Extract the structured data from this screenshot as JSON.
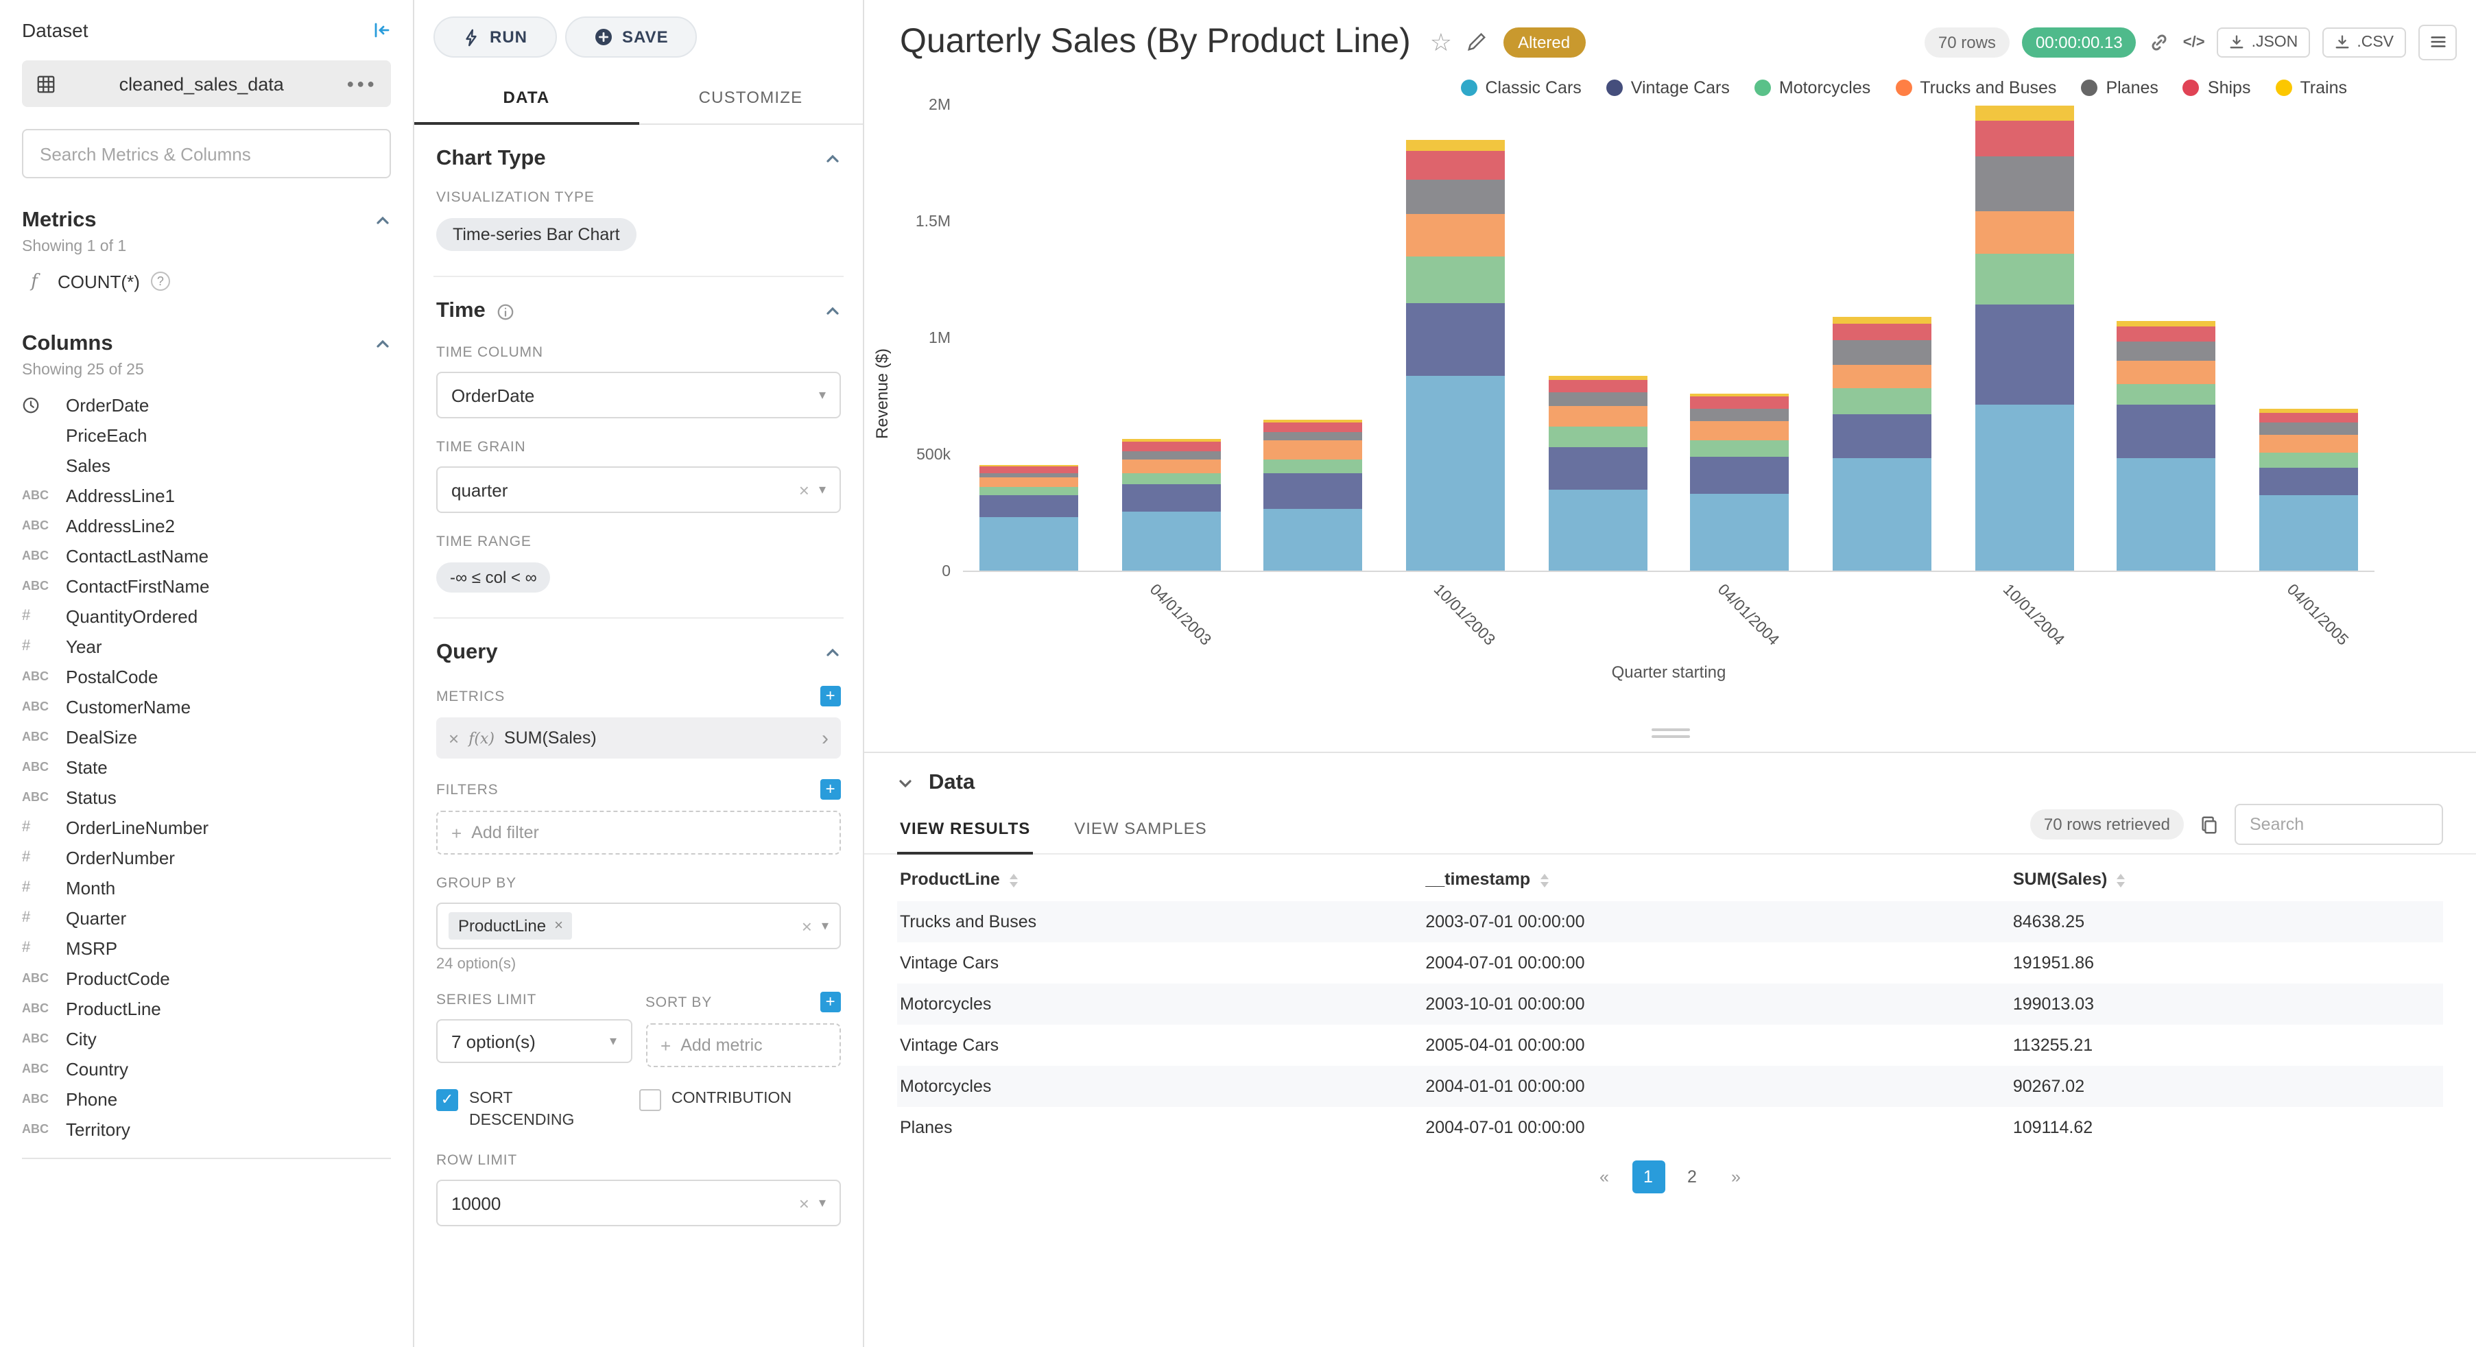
{
  "colors": {
    "accent": "#299CDB",
    "timer_badge_bg": "#4FBA8B",
    "altered_badge_bg": "#C9992E"
  },
  "dataset_panel": {
    "title": "Dataset",
    "dataset_name": "cleaned_sales_data",
    "search_placeholder": "Search Metrics & Columns",
    "metrics": {
      "title": "Metrics",
      "showing": "Showing 1 of 1",
      "items": [
        {
          "label": "COUNT(*)",
          "icon": "function"
        }
      ]
    },
    "columns": {
      "title": "Columns",
      "showing": "Showing 25 of 25",
      "items": [
        {
          "name": "OrderDate",
          "type": "time"
        },
        {
          "name": "PriceEach",
          "type": "none"
        },
        {
          "name": "Sales",
          "type": "none"
        },
        {
          "name": "AddressLine1",
          "type": "text"
        },
        {
          "name": "AddressLine2",
          "type": "text"
        },
        {
          "name": "ContactLastName",
          "type": "text"
        },
        {
          "name": "ContactFirstName",
          "type": "text"
        },
        {
          "name": "QuantityOrdered",
          "type": "num"
        },
        {
          "name": "Year",
          "type": "num"
        },
        {
          "name": "PostalCode",
          "type": "text"
        },
        {
          "name": "CustomerName",
          "type": "text"
        },
        {
          "name": "DealSize",
          "type": "text"
        },
        {
          "name": "State",
          "type": "text"
        },
        {
          "name": "Status",
          "type": "text"
        },
        {
          "name": "OrderLineNumber",
          "type": "num"
        },
        {
          "name": "OrderNumber",
          "type": "num"
        },
        {
          "name": "Month",
          "type": "num"
        },
        {
          "name": "Quarter",
          "type": "num"
        },
        {
          "name": "MSRP",
          "type": "num"
        },
        {
          "name": "ProductCode",
          "type": "text"
        },
        {
          "name": "ProductLine",
          "type": "text"
        },
        {
          "name": "City",
          "type": "text"
        },
        {
          "name": "Country",
          "type": "text"
        },
        {
          "name": "Phone",
          "type": "text"
        },
        {
          "name": "Territory",
          "type": "text"
        }
      ]
    }
  },
  "control_panel": {
    "run_label": "RUN",
    "save_label": "SAVE",
    "tabs": [
      "DATA",
      "CUSTOMIZE"
    ],
    "chart_type": {
      "title": "Chart Type",
      "viz_type_label": "VISUALIZATION TYPE",
      "viz_type_value": "Time-series Bar Chart"
    },
    "time": {
      "title": "Time",
      "time_column_label": "TIME COLUMN",
      "time_column_value": "OrderDate",
      "time_grain_label": "TIME GRAIN",
      "time_grain_value": "quarter",
      "time_range_label": "TIME RANGE",
      "time_range_value": "-∞ ≤ col < ∞"
    },
    "query": {
      "title": "Query",
      "metrics_label": "METRICS",
      "metric_value": "SUM(Sales)",
      "filters_label": "FILTERS",
      "add_filter": "Add filter",
      "group_by_label": "GROUP BY",
      "group_by_value": "ProductLine",
      "group_by_options": "24 option(s)",
      "series_limit_label": "SERIES LIMIT",
      "series_limit_value": "7 option(s)",
      "sort_by_label": "SORT BY",
      "add_metric": "Add metric",
      "sort_descending_label": "SORT DESCENDING",
      "contribution_label": "CONTRIBUTION",
      "row_limit_label": "ROW LIMIT",
      "row_limit_value": "10000"
    }
  },
  "header": {
    "title": "Quarterly Sales (By Product Line)",
    "altered_badge": "Altered",
    "rows_badge": "70 rows",
    "timer_badge": "00:00:00.13",
    "json_label": ".JSON",
    "csv_label": ".CSV"
  },
  "chart_data": {
    "type": "bar",
    "stacked": true,
    "title": "Quarterly Sales (By Product Line)",
    "xlabel": "Quarter starting",
    "ylabel": "Revenue ($)",
    "ylim": [
      0,
      2000000
    ],
    "y_ticks": [
      "2M",
      "1.5M",
      "1M",
      "500k",
      "0"
    ],
    "legend_position": "top",
    "grid": false,
    "x": [
      "2003-01-01",
      "2003-04-01",
      "2003-07-01",
      "2003-10-01",
      "2004-01-01",
      "2004-04-01",
      "2004-07-01",
      "2004-10-01",
      "2005-01-01",
      "2005-04-01"
    ],
    "x_tick_labels": [
      "",
      "04/01/2003",
      "",
      "10/01/2003",
      "",
      "04/01/2004",
      "",
      "10/01/2004",
      "",
      "04/01/2005"
    ],
    "series": [
      {
        "name": "Classic Cars",
        "color": "#2FA8C9",
        "bar_color": "#7EB6D3",
        "values": [
          230000,
          255000,
          265000,
          835000,
          350000,
          330000,
          480000,
          715000,
          480000,
          325000
        ]
      },
      {
        "name": "Vintage Cars",
        "color": "#454E7C",
        "bar_color": "#68719F",
        "values": [
          95000,
          115000,
          150000,
          315000,
          180000,
          160000,
          191952,
          425000,
          230000,
          113255
        ]
      },
      {
        "name": "Motorcycles",
        "color": "#5AC189",
        "bar_color": "#90C899",
        "values": [
          35000,
          50000,
          60000,
          199013,
          90267,
          70000,
          110000,
          220000,
          90000,
          70000
        ]
      },
      {
        "name": "Trucks and Buses",
        "color": "#FF7F44",
        "bar_color": "#F5A269",
        "values": [
          40000,
          55000,
          84638,
          180000,
          85000,
          80000,
          100000,
          180000,
          100000,
          75000
        ]
      },
      {
        "name": "Planes",
        "color": "#666666",
        "bar_color": "#8B8B8F",
        "values": [
          20000,
          35000,
          35000,
          150000,
          60000,
          55000,
          109115,
          235000,
          85000,
          50000
        ]
      },
      {
        "name": "Ships",
        "color": "#E04355",
        "bar_color": "#DE646C",
        "values": [
          25000,
          40000,
          40000,
          120000,
          50000,
          50000,
          70000,
          155000,
          60000,
          45000
        ]
      },
      {
        "name": "Trains",
        "color": "#FCC700",
        "bar_color": "#F2C53F",
        "values": [
          8000,
          15000,
          12000,
          50000,
          20000,
          15000,
          30000,
          80000,
          25000,
          15000
        ]
      }
    ]
  },
  "results_panel": {
    "title": "Data",
    "tabs": [
      "VIEW RESULTS",
      "VIEW SAMPLES"
    ],
    "rows_retrieved": "70 rows retrieved",
    "search_placeholder": "Search",
    "table": {
      "headers": [
        "ProductLine",
        "__timestamp",
        "SUM(Sales)"
      ],
      "rows": [
        [
          "Trucks and Buses",
          "2003-07-01 00:00:00",
          "84638.25"
        ],
        [
          "Vintage Cars",
          "2004-07-01 00:00:00",
          "191951.86"
        ],
        [
          "Motorcycles",
          "2003-10-01 00:00:00",
          "199013.03"
        ],
        [
          "Vintage Cars",
          "2005-04-01 00:00:00",
          "113255.21"
        ],
        [
          "Motorcycles",
          "2004-01-01 00:00:00",
          "90267.02"
        ],
        [
          "Planes",
          "2004-07-01 00:00:00",
          "109114.62"
        ]
      ]
    },
    "pagination": {
      "items": [
        "«",
        "1",
        "2",
        "»"
      ],
      "active": "1"
    }
  }
}
